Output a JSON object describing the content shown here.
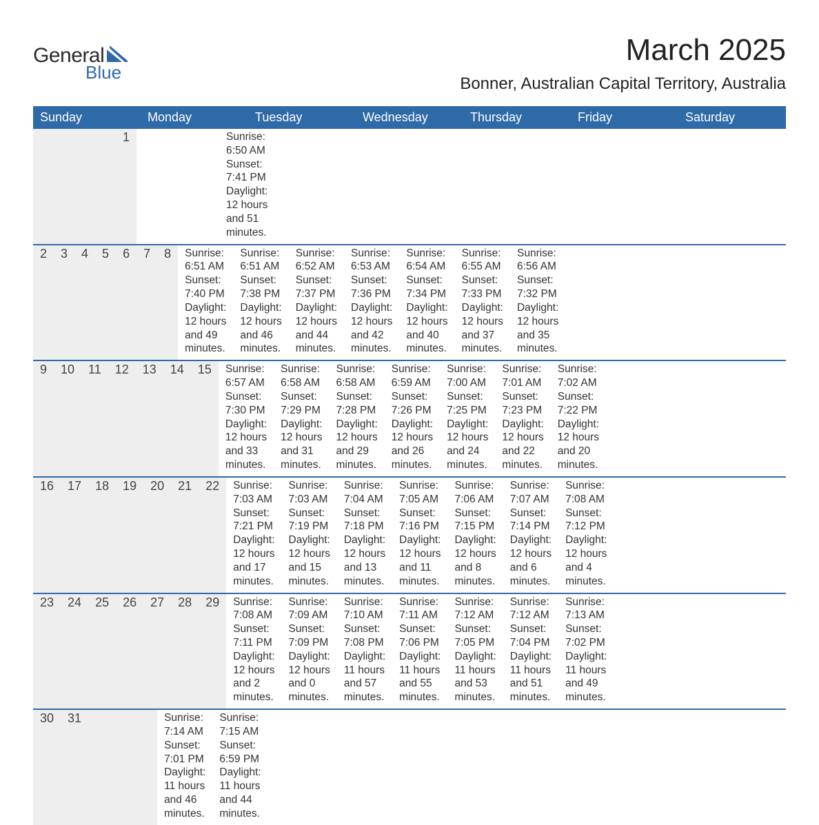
{
  "logo": {
    "text_top": "General",
    "text_bottom": "Blue",
    "accent_color": "#2f6aa8"
  },
  "title": "March 2025",
  "location": "Bonner, Australian Capital Territory, Australia",
  "colors": {
    "header_bg": "#2f6aa8",
    "header_text": "#ffffff",
    "daynum_bg": "#eeeeee",
    "week_divider": "#2f6aa8",
    "body_text": "#333333"
  },
  "day_labels": [
    "Sunday",
    "Monday",
    "Tuesday",
    "Wednesday",
    "Thursday",
    "Friday",
    "Saturday"
  ],
  "weeks": [
    [
      null,
      null,
      null,
      null,
      null,
      null,
      {
        "n": "1",
        "sr": "Sunrise: 6:50 AM",
        "ss": "Sunset: 7:41 PM",
        "d1": "Daylight: 12 hours",
        "d2": "and 51 minutes."
      }
    ],
    [
      {
        "n": "2",
        "sr": "Sunrise: 6:51 AM",
        "ss": "Sunset: 7:40 PM",
        "d1": "Daylight: 12 hours",
        "d2": "and 49 minutes."
      },
      {
        "n": "3",
        "sr": "Sunrise: 6:51 AM",
        "ss": "Sunset: 7:38 PM",
        "d1": "Daylight: 12 hours",
        "d2": "and 46 minutes."
      },
      {
        "n": "4",
        "sr": "Sunrise: 6:52 AM",
        "ss": "Sunset: 7:37 PM",
        "d1": "Daylight: 12 hours",
        "d2": "and 44 minutes."
      },
      {
        "n": "5",
        "sr": "Sunrise: 6:53 AM",
        "ss": "Sunset: 7:36 PM",
        "d1": "Daylight: 12 hours",
        "d2": "and 42 minutes."
      },
      {
        "n": "6",
        "sr": "Sunrise: 6:54 AM",
        "ss": "Sunset: 7:34 PM",
        "d1": "Daylight: 12 hours",
        "d2": "and 40 minutes."
      },
      {
        "n": "7",
        "sr": "Sunrise: 6:55 AM",
        "ss": "Sunset: 7:33 PM",
        "d1": "Daylight: 12 hours",
        "d2": "and 37 minutes."
      },
      {
        "n": "8",
        "sr": "Sunrise: 6:56 AM",
        "ss": "Sunset: 7:32 PM",
        "d1": "Daylight: 12 hours",
        "d2": "and 35 minutes."
      }
    ],
    [
      {
        "n": "9",
        "sr": "Sunrise: 6:57 AM",
        "ss": "Sunset: 7:30 PM",
        "d1": "Daylight: 12 hours",
        "d2": "and 33 minutes."
      },
      {
        "n": "10",
        "sr": "Sunrise: 6:58 AM",
        "ss": "Sunset: 7:29 PM",
        "d1": "Daylight: 12 hours",
        "d2": "and 31 minutes."
      },
      {
        "n": "11",
        "sr": "Sunrise: 6:58 AM",
        "ss": "Sunset: 7:28 PM",
        "d1": "Daylight: 12 hours",
        "d2": "and 29 minutes."
      },
      {
        "n": "12",
        "sr": "Sunrise: 6:59 AM",
        "ss": "Sunset: 7:26 PM",
        "d1": "Daylight: 12 hours",
        "d2": "and 26 minutes."
      },
      {
        "n": "13",
        "sr": "Sunrise: 7:00 AM",
        "ss": "Sunset: 7:25 PM",
        "d1": "Daylight: 12 hours",
        "d2": "and 24 minutes."
      },
      {
        "n": "14",
        "sr": "Sunrise: 7:01 AM",
        "ss": "Sunset: 7:23 PM",
        "d1": "Daylight: 12 hours",
        "d2": "and 22 minutes."
      },
      {
        "n": "15",
        "sr": "Sunrise: 7:02 AM",
        "ss": "Sunset: 7:22 PM",
        "d1": "Daylight: 12 hours",
        "d2": "and 20 minutes."
      }
    ],
    [
      {
        "n": "16",
        "sr": "Sunrise: 7:03 AM",
        "ss": "Sunset: 7:21 PM",
        "d1": "Daylight: 12 hours",
        "d2": "and 17 minutes."
      },
      {
        "n": "17",
        "sr": "Sunrise: 7:03 AM",
        "ss": "Sunset: 7:19 PM",
        "d1": "Daylight: 12 hours",
        "d2": "and 15 minutes."
      },
      {
        "n": "18",
        "sr": "Sunrise: 7:04 AM",
        "ss": "Sunset: 7:18 PM",
        "d1": "Daylight: 12 hours",
        "d2": "and 13 minutes."
      },
      {
        "n": "19",
        "sr": "Sunrise: 7:05 AM",
        "ss": "Sunset: 7:16 PM",
        "d1": "Daylight: 12 hours",
        "d2": "and 11 minutes."
      },
      {
        "n": "20",
        "sr": "Sunrise: 7:06 AM",
        "ss": "Sunset: 7:15 PM",
        "d1": "Daylight: 12 hours",
        "d2": "and 8 minutes."
      },
      {
        "n": "21",
        "sr": "Sunrise: 7:07 AM",
        "ss": "Sunset: 7:14 PM",
        "d1": "Daylight: 12 hours",
        "d2": "and 6 minutes."
      },
      {
        "n": "22",
        "sr": "Sunrise: 7:08 AM",
        "ss": "Sunset: 7:12 PM",
        "d1": "Daylight: 12 hours",
        "d2": "and 4 minutes."
      }
    ],
    [
      {
        "n": "23",
        "sr": "Sunrise: 7:08 AM",
        "ss": "Sunset: 7:11 PM",
        "d1": "Daylight: 12 hours",
        "d2": "and 2 minutes."
      },
      {
        "n": "24",
        "sr": "Sunrise: 7:09 AM",
        "ss": "Sunset: 7:09 PM",
        "d1": "Daylight: 12 hours",
        "d2": "and 0 minutes."
      },
      {
        "n": "25",
        "sr": "Sunrise: 7:10 AM",
        "ss": "Sunset: 7:08 PM",
        "d1": "Daylight: 11 hours",
        "d2": "and 57 minutes."
      },
      {
        "n": "26",
        "sr": "Sunrise: 7:11 AM",
        "ss": "Sunset: 7:06 PM",
        "d1": "Daylight: 11 hours",
        "d2": "and 55 minutes."
      },
      {
        "n": "27",
        "sr": "Sunrise: 7:12 AM",
        "ss": "Sunset: 7:05 PM",
        "d1": "Daylight: 11 hours",
        "d2": "and 53 minutes."
      },
      {
        "n": "28",
        "sr": "Sunrise: 7:12 AM",
        "ss": "Sunset: 7:04 PM",
        "d1": "Daylight: 11 hours",
        "d2": "and 51 minutes."
      },
      {
        "n": "29",
        "sr": "Sunrise: 7:13 AM",
        "ss": "Sunset: 7:02 PM",
        "d1": "Daylight: 11 hours",
        "d2": "and 49 minutes."
      }
    ],
    [
      {
        "n": "30",
        "sr": "Sunrise: 7:14 AM",
        "ss": "Sunset: 7:01 PM",
        "d1": "Daylight: 11 hours",
        "d2": "and 46 minutes."
      },
      {
        "n": "31",
        "sr": "Sunrise: 7:15 AM",
        "ss": "Sunset: 6:59 PM",
        "d1": "Daylight: 11 hours",
        "d2": "and 44 minutes."
      },
      null,
      null,
      null,
      null,
      null
    ]
  ]
}
